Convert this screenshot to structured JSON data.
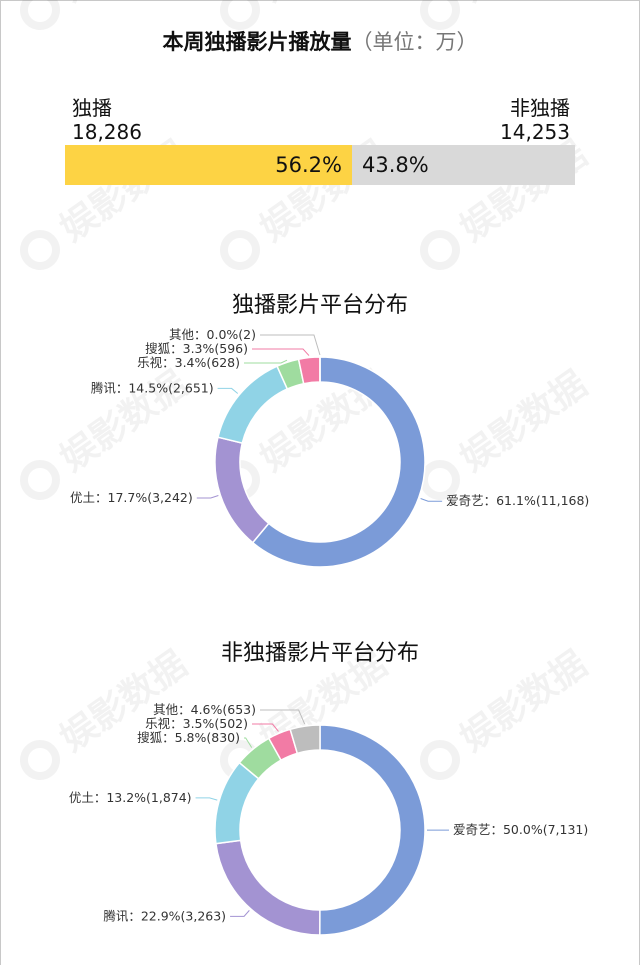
{
  "title": "本周独播影片播放量",
  "title_unit": "（单位：万）",
  "watermark_text": "娱影数据",
  "summary": {
    "exclusive": {
      "label": "独播",
      "value": "18,286",
      "percent_label": "56.2%",
      "share": 0.562
    },
    "non_exclusive": {
      "label": "非独播",
      "value": "14,253",
      "percent_label": "43.8%",
      "share": 0.438
    }
  },
  "colors": {
    "exclusive_bar": "#FDD344",
    "non_exclusive_bar": "#D9D9D9",
    "爱奇艺": "#7B9BD8",
    "优土": "#A393D2",
    "腾讯": "#90D3E6",
    "乐视": "#9FDC9F",
    "搜狐": "#F27BA5",
    "其他": "#BDBDBD",
    "non_exclusive_优土": "#90D3E6",
    "non_exclusive_腾讯": "#A393D2",
    "non_exclusive_搜狐": "#9FDC9F"
  },
  "chart_data": [
    {
      "type": "pie",
      "title": "独播影片平台分布",
      "donut": true,
      "slices": [
        {
          "name": "爱奇艺",
          "percent": 61.1,
          "value": 11168,
          "label": "爱奇艺：61.1%(11,168)",
          "color": "#7B9BD8"
        },
        {
          "name": "优土",
          "percent": 17.7,
          "value": 3242,
          "label": "优土：17.7%(3,242)",
          "color": "#A393D2"
        },
        {
          "name": "腾讯",
          "percent": 14.5,
          "value": 2651,
          "label": "腾讯：14.5%(2,651)",
          "color": "#90D3E6"
        },
        {
          "name": "乐视",
          "percent": 3.4,
          "value": 628,
          "label": "乐视：3.4%(628)",
          "color": "#9FDC9F"
        },
        {
          "name": "搜狐",
          "percent": 3.3,
          "value": 596,
          "label": "搜狐：3.3%(596)",
          "color": "#F27BA5"
        },
        {
          "name": "其他",
          "percent": 0.0,
          "value": 2,
          "label": "其他：0.0%(2)",
          "color": "#BDBDBD"
        }
      ]
    },
    {
      "type": "pie",
      "title": "非独播影片平台分布",
      "donut": true,
      "slices": [
        {
          "name": "爱奇艺",
          "percent": 50.0,
          "value": 7131,
          "label": "爱奇艺：50.0%(7,131)",
          "color": "#7B9BD8"
        },
        {
          "name": "腾讯",
          "percent": 22.9,
          "value": 3263,
          "label": "腾讯：22.9%(3,263)",
          "color": "#A393D2"
        },
        {
          "name": "优土",
          "percent": 13.2,
          "value": 1874,
          "label": "优土：13.2%(1,874)",
          "color": "#90D3E6"
        },
        {
          "name": "搜狐",
          "percent": 5.8,
          "value": 830,
          "label": "搜狐：5.8%(830)",
          "color": "#9FDC9F"
        },
        {
          "name": "乐视",
          "percent": 3.5,
          "value": 502,
          "label": "乐视：3.5%(502)",
          "color": "#F27BA5"
        },
        {
          "name": "其他",
          "percent": 4.6,
          "value": 653,
          "label": "其他：4.6%(653)",
          "color": "#BDBDBD"
        }
      ]
    }
  ]
}
